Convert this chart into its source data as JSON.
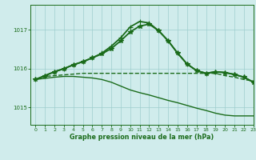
{
  "title": "Graphe pression niveau de la mer (hPa)",
  "background_color": "#d0ecec",
  "grid_color": "#9ecece",
  "line_color": "#1a6b1a",
  "xlim": [
    -0.5,
    23
  ],
  "ylim": [
    1014.55,
    1017.65
  ],
  "yticks": [
    1015,
    1016,
    1017
  ],
  "xticks": [
    0,
    1,
    2,
    3,
    4,
    5,
    6,
    7,
    8,
    9,
    10,
    11,
    12,
    13,
    14,
    15,
    16,
    17,
    18,
    19,
    20,
    21,
    22,
    23
  ],
  "series": [
    {
      "x": [
        0,
        1,
        2,
        3,
        4,
        5,
        6,
        7,
        8,
        9,
        10,
        11,
        12,
        13,
        14,
        15,
        16,
        17,
        18,
        19,
        20,
        21,
        22,
        23
      ],
      "y": [
        1015.72,
        1015.8,
        1015.82,
        1015.84,
        1015.86,
        1015.88,
        1015.88,
        1015.88,
        1015.88,
        1015.88,
        1015.88,
        1015.88,
        1015.88,
        1015.88,
        1015.88,
        1015.88,
        1015.88,
        1015.88,
        1015.88,
        1015.88,
        1015.82,
        1015.78,
        1015.72,
        1015.68
      ],
      "marker": null,
      "linewidth": 1.0,
      "linestyle": "--"
    },
    {
      "x": [
        0,
        1,
        2,
        3,
        4,
        5,
        6,
        7,
        8,
        9,
        10,
        11,
        12,
        13,
        14,
        15,
        16,
        17,
        18,
        19,
        20,
        21,
        22,
        23
      ],
      "y": [
        1015.72,
        1015.75,
        1015.78,
        1015.8,
        1015.8,
        1015.78,
        1015.76,
        1015.72,
        1015.65,
        1015.55,
        1015.45,
        1015.38,
        1015.32,
        1015.25,
        1015.18,
        1015.12,
        1015.05,
        1014.98,
        1014.92,
        1014.85,
        1014.8,
        1014.78,
        1014.78,
        1014.78
      ],
      "marker": null,
      "linewidth": 1.0,
      "linestyle": "-"
    },
    {
      "x": [
        0,
        1,
        2,
        3,
        4,
        5,
        6,
        7,
        8,
        9,
        10,
        11,
        12,
        13,
        14,
        15,
        16,
        17,
        18,
        19,
        20,
        21,
        22,
        23
      ],
      "y": [
        1015.72,
        1015.82,
        1015.92,
        1016.0,
        1016.1,
        1016.18,
        1016.28,
        1016.38,
        1016.52,
        1016.72,
        1016.95,
        1017.1,
        1017.15,
        1016.98,
        1016.72,
        1016.4,
        1016.12,
        1015.95,
        1015.88,
        1015.92,
        1015.9,
        1015.85,
        1015.78,
        1015.65
      ],
      "marker": "*",
      "linewidth": 1.3,
      "linestyle": "-"
    },
    {
      "x": [
        0,
        1,
        2,
        3,
        4,
        5,
        6,
        7,
        8,
        9,
        10,
        11,
        12,
        13,
        14,
        15,
        16,
        17,
        18,
        19,
        20,
        21,
        22,
        23
      ],
      "y": [
        1015.72,
        1015.82,
        1015.92,
        1016.0,
        1016.1,
        1016.18,
        1016.28,
        1016.4,
        1016.58,
        1016.8,
        1017.08,
        1017.22,
        1017.18,
        1016.98,
        1016.72,
        1016.4,
        1016.12,
        1015.95,
        1015.88,
        1015.92,
        1015.9,
        1015.85,
        1015.78,
        1015.65
      ],
      "marker": "+",
      "linewidth": 1.3,
      "linestyle": "-"
    }
  ]
}
